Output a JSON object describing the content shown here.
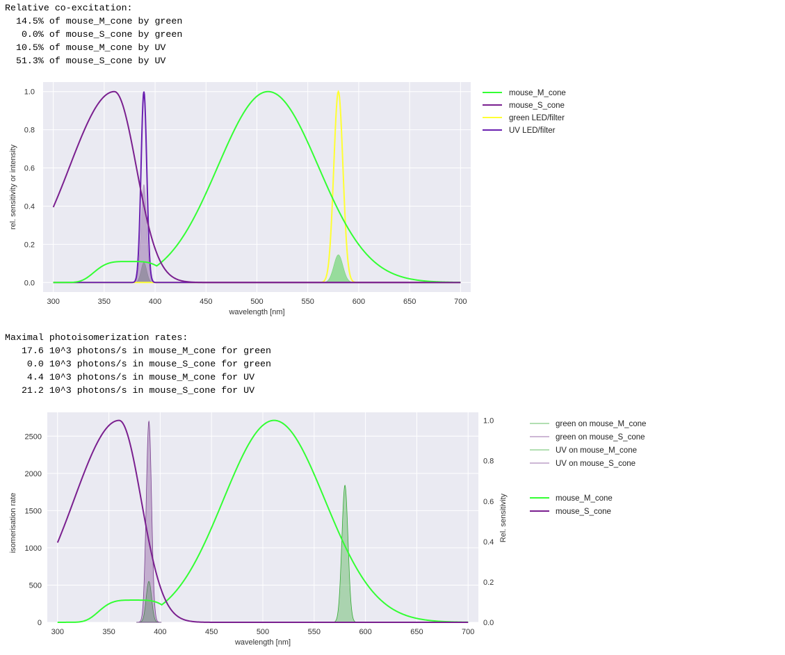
{
  "output1": {
    "header": "Relative co-excitation:",
    "lines": [
      "  14.5% of mouse_M_cone by green",
      "   0.0% of mouse_S_cone by green",
      "  10.5% of mouse_M_cone by UV",
      "  51.3% of mouse_S_cone by UV"
    ]
  },
  "output2": {
    "header": "Maximal photoisomerization rates:",
    "lines": [
      "   17.6 10^3 photons/s in mouse_M_cone for green",
      "    0.0 10^3 photons/s in mouse_S_cone for green",
      "    4.4 10^3 photons/s in mouse_M_cone for UV",
      "   21.2 10^3 photons/s in mouse_S_cone for UV"
    ]
  },
  "chart_data": [
    {
      "type": "line",
      "xlabel": "wavelength [nm]",
      "ylabel": "rel. sensitivity or intensity",
      "xlim": [
        290,
        710
      ],
      "ylim": [
        -0.05,
        1.05
      ],
      "xticks": [
        300,
        350,
        400,
        450,
        500,
        550,
        600,
        650,
        700
      ],
      "yticks": [
        "0.0",
        "0.2",
        "0.4",
        "0.6",
        "0.8",
        "1.0"
      ],
      "legend_position": "outside-right",
      "grid": true,
      "background": "#eaeaf2",
      "series": [
        {
          "name": "mouse_M_cone",
          "color": "#33ff33",
          "kind": "M_cone_template",
          "peak_nm": 511,
          "x_range": [
            300,
            700
          ]
        },
        {
          "name": "mouse_S_cone",
          "color": "#7a1f8f",
          "kind": "S_cone_template",
          "peak_nm": 360,
          "x_range": [
            300,
            700
          ]
        },
        {
          "name": "green LED/filter",
          "color": "#ffff33",
          "kind": "gaussian",
          "peak_nm": 580,
          "sigma_nm": 4.5,
          "x_range": [
            300,
            700
          ]
        },
        {
          "name": "UV LED/filter",
          "color": "#6a1fb0",
          "kind": "gaussian",
          "peak_nm": 389,
          "sigma_nm": 2.8,
          "x_range": [
            300,
            700
          ]
        }
      ],
      "fills": [
        {
          "desc": "green x M_cone overlap",
          "color": "#33cc33",
          "peak_nm": 580,
          "sigma_nm": 4.5,
          "height": 0.145
        },
        {
          "desc": "UV x M_cone overlap",
          "color": "#558855",
          "peak_nm": 389,
          "sigma_nm": 2.8,
          "height": 0.105
        },
        {
          "desc": "UV x S_cone overlap",
          "color": "#8a5aa0",
          "peak_nm": 389,
          "sigma_nm": 2.8,
          "height": 0.513
        }
      ]
    },
    {
      "type": "line",
      "xlabel": "wavelength [nm]",
      "ylabel": "isomerisation rate",
      "ylabel_right": "Rel. sensitivity",
      "xlim": [
        290,
        710
      ],
      "ylim": [
        0,
        2820
      ],
      "ylim_right": [
        0,
        1.04
      ],
      "xticks": [
        300,
        350,
        400,
        450,
        500,
        550,
        600,
        650,
        700
      ],
      "yticks": [
        "0",
        "500",
        "1000",
        "1500",
        "2000",
        "2500"
      ],
      "yticks_right": [
        "0.0",
        "0.2",
        "0.4",
        "0.6",
        "0.8",
        "1.0"
      ],
      "legend_position": "outside-right",
      "grid": true,
      "background": "#eaeaf2",
      "fill_series": [
        {
          "name": "green on mouse_M_cone",
          "color": "#33aa33",
          "peak_nm": 580,
          "sigma_nm": 3.0,
          "peak_rate": 1840
        },
        {
          "name": "green on mouse_S_cone",
          "color": "#7a3f8f",
          "peak_nm": 580,
          "sigma_nm": 3.0,
          "peak_rate": 0
        },
        {
          "name": "UV on mouse_M_cone",
          "color": "#33aa33",
          "peak_nm": 389,
          "sigma_nm": 2.6,
          "peak_rate": 550
        },
        {
          "name": "UV on mouse_S_cone",
          "color": "#7a3f8f",
          "peak_nm": 389,
          "sigma_nm": 2.6,
          "peak_rate": 2700
        }
      ],
      "series": [
        {
          "name": "mouse_M_cone",
          "color": "#33ff33",
          "kind": "M_cone_template",
          "peak_nm": 511,
          "x_range": [
            300,
            700
          ]
        },
        {
          "name": "mouse_S_cone",
          "color": "#7a1f8f",
          "kind": "S_cone_template",
          "peak_nm": 360,
          "x_range": [
            300,
            700
          ]
        }
      ]
    }
  ]
}
